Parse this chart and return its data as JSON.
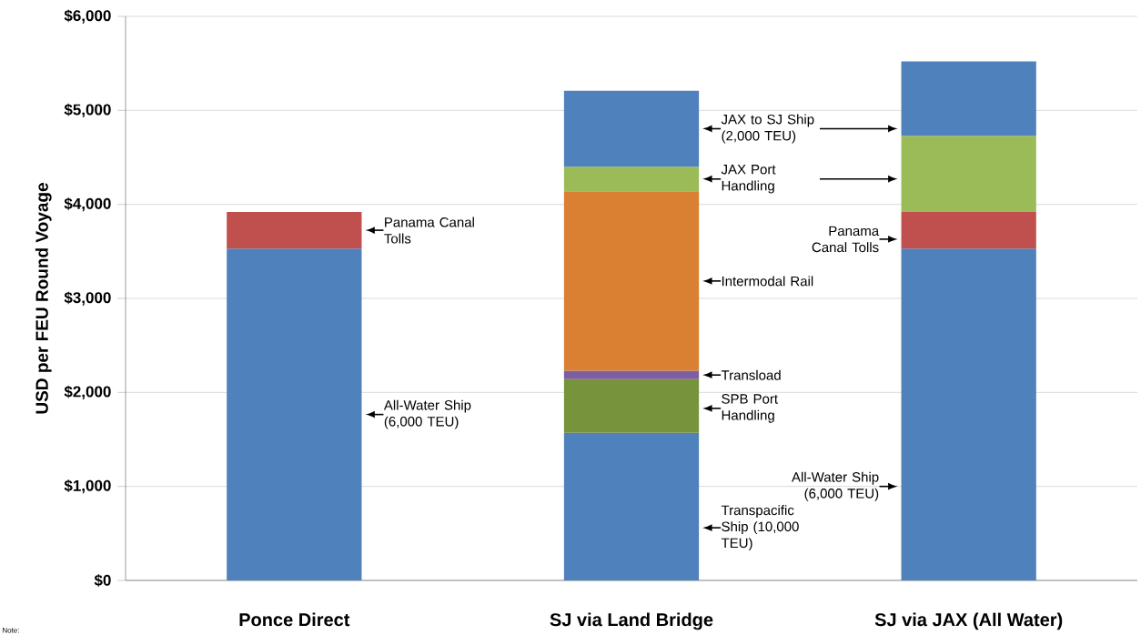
{
  "chart_data": {
    "type": "bar",
    "stacked": true,
    "ylabel": "USD per FEU Round Voyage",
    "categories": [
      "Ponce Direct",
      "SJ via Land Bridge",
      "SJ via JAX (All Water)"
    ],
    "series": [
      {
        "name": "All-Water Ship (6,000 TEU)",
        "color": "#4f81bd",
        "values": [
          3530,
          null,
          3530
        ]
      },
      {
        "name": "Transpacific Ship (10,000 TEU)",
        "color": "#4f81bd",
        "values": [
          null,
          1570,
          null
        ]
      },
      {
        "name": "SPB Port Handling",
        "color": "#77933c",
        "values": [
          null,
          570,
          null
        ]
      },
      {
        "name": "Transload",
        "color": "#7f5ea0",
        "values": [
          null,
          90,
          null
        ]
      },
      {
        "name": "Intermodal Rail",
        "color": "#d98032",
        "values": [
          null,
          1910,
          null
        ]
      },
      {
        "name": "Panama Canal Tolls",
        "color": "#c0504d",
        "values": [
          390,
          null,
          390
        ]
      },
      {
        "name": "JAX Port Handling",
        "color": "#9bbb59",
        "values": [
          null,
          260,
          810
        ]
      },
      {
        "name": "JAX to SJ Ship (2,000 TEU)",
        "color": "#4f81bd",
        "values": [
          null,
          810,
          790
        ]
      }
    ],
    "ylim": [
      0,
      6000
    ],
    "yticks": [
      {
        "value": 0,
        "label": "$0"
      },
      {
        "value": 1000,
        "label": "$1,000"
      },
      {
        "value": 2000,
        "label": "$2,000"
      },
      {
        "value": 3000,
        "label": "$3,000"
      },
      {
        "value": 4000,
        "label": "$4,000"
      },
      {
        "value": 5000,
        "label": "$5,000"
      },
      {
        "value": 6000,
        "label": "$6,000"
      }
    ],
    "grid": "y",
    "annotations": [
      "Note:"
    ]
  }
}
